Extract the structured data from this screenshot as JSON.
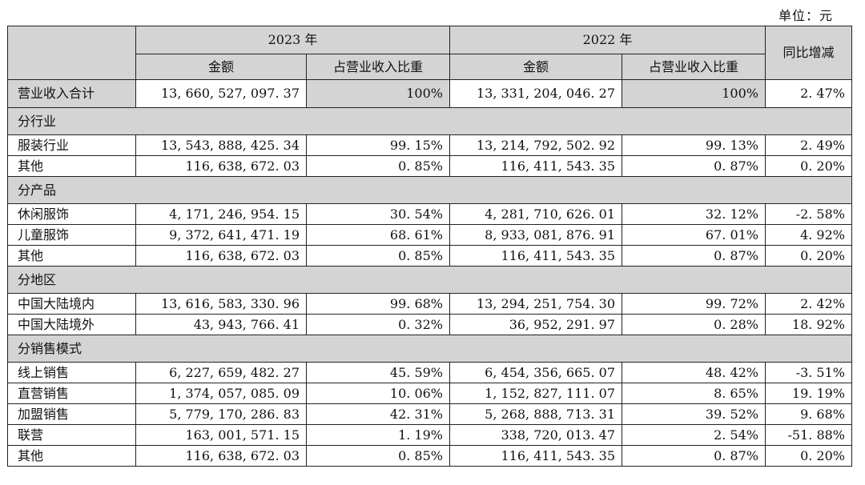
{
  "unit_label": "单位：元",
  "headers": {
    "year_2023": "2023 年",
    "year_2022": "2022 年",
    "yoy": "同比增减",
    "amount": "金额",
    "share": "占营业收入比重"
  },
  "total": {
    "label": "营业收入合计",
    "amount_2023": "13, 660, 527, 097. 37",
    "share_2023": "100%",
    "amount_2022": "13, 331, 204, 046. 27",
    "share_2022": "100%",
    "yoy": "2. 47%"
  },
  "sections": [
    {
      "title": "分行业",
      "rows": [
        {
          "label": "服装行业",
          "amount_2023": "13, 543, 888, 425. 34",
          "share_2023": "99. 15%",
          "amount_2022": "13, 214, 792, 502. 92",
          "share_2022": "99. 13%",
          "yoy": "2. 49%"
        },
        {
          "label": "其他",
          "amount_2023": "116, 638, 672. 03",
          "share_2023": "0. 85%",
          "amount_2022": "116, 411, 543. 35",
          "share_2022": "0. 87%",
          "yoy": "0. 20%"
        }
      ]
    },
    {
      "title": "分产品",
      "rows": [
        {
          "label": "休闲服饰",
          "amount_2023": "4, 171, 246, 954. 15",
          "share_2023": "30. 54%",
          "amount_2022": "4, 281, 710, 626. 01",
          "share_2022": "32. 12%",
          "yoy": "-2. 58%"
        },
        {
          "label": "儿童服饰",
          "amount_2023": "9, 372, 641, 471. 19",
          "share_2023": "68. 61%",
          "amount_2022": "8, 933, 081, 876. 91",
          "share_2022": "67. 01%",
          "yoy": "4. 92%"
        },
        {
          "label": "其他",
          "amount_2023": "116, 638, 672. 03",
          "share_2023": "0. 85%",
          "amount_2022": "116, 411, 543. 35",
          "share_2022": "0. 87%",
          "yoy": "0. 20%"
        }
      ]
    },
    {
      "title": "分地区",
      "rows": [
        {
          "label": "中国大陆境内",
          "amount_2023": "13, 616, 583, 330. 96",
          "share_2023": "99. 68%",
          "amount_2022": "13, 294, 251, 754. 30",
          "share_2022": "99. 72%",
          "yoy": "2. 42%"
        },
        {
          "label": "中国大陆境外",
          "amount_2023": "43, 943, 766. 41",
          "share_2023": "0. 32%",
          "amount_2022": "36, 952, 291. 97",
          "share_2022": "0. 28%",
          "yoy": "18. 92%"
        }
      ]
    },
    {
      "title": "分销售模式",
      "rows": [
        {
          "label": "线上销售",
          "amount_2023": "6, 227, 659, 482. 27",
          "share_2023": "45. 59%",
          "amount_2022": "6, 454, 356, 665. 07",
          "share_2022": "48. 42%",
          "yoy": "-3. 51%"
        },
        {
          "label": "直营销售",
          "amount_2023": "1, 374, 057, 085. 09",
          "share_2023": "10. 06%",
          "amount_2022": "1, 152, 827, 111. 07",
          "share_2022": "8. 65%",
          "yoy": "19. 19%"
        },
        {
          "label": "加盟销售",
          "amount_2023": "5, 779, 170, 286. 83",
          "share_2023": "42. 31%",
          "amount_2022": "5, 268, 888, 713. 31",
          "share_2022": "39. 52%",
          "yoy": "9. 68%"
        },
        {
          "label": "联营",
          "amount_2023": "163, 001, 571. 15",
          "share_2023": "1. 19%",
          "amount_2022": "338, 720, 013. 47",
          "share_2022": "2. 54%",
          "yoy": "-51. 88%"
        },
        {
          "label": "其他",
          "amount_2023": "116, 638, 672. 03",
          "share_2023": "0. 85%",
          "amount_2022": "116, 411, 543. 35",
          "share_2022": "0. 87%",
          "yoy": "0. 20%"
        }
      ]
    }
  ]
}
